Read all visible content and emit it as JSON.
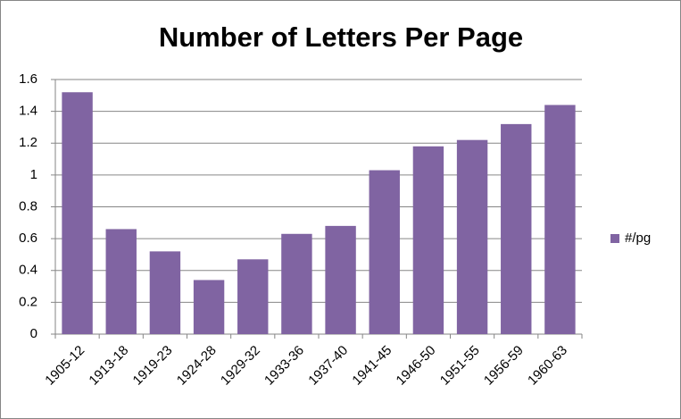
{
  "chart_data": {
    "type": "bar",
    "title": "Number of Letters Per Page",
    "categories": [
      "1905-12",
      "1913-18",
      "1919-23",
      "1924-28",
      "1929-32",
      "1933-36",
      "1937-40",
      "1941-45",
      "1946-50",
      "1951-55",
      "1956-59",
      "1960-63"
    ],
    "series": [
      {
        "name": "#/pg",
        "color": "#8064a2",
        "values": [
          1.52,
          0.66,
          0.52,
          0.34,
          0.47,
          0.63,
          0.68,
          1.03,
          1.18,
          1.22,
          1.32,
          1.44
        ]
      }
    ],
    "ylim": [
      0,
      1.6
    ],
    "yticks": [
      0,
      0.2,
      0.4,
      0.6,
      0.8,
      1,
      1.2,
      1.4,
      1.6
    ],
    "grid": true,
    "legend": "right"
  }
}
